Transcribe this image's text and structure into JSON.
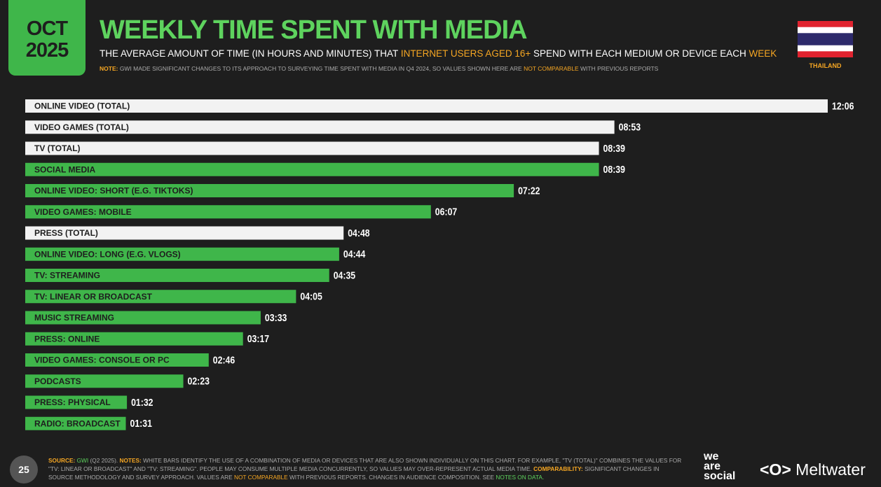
{
  "header": {
    "month": "OCT",
    "year": "2025",
    "country": "THAILAND",
    "page_number": "25",
    "subtitle_parts": [
      {
        "text": "THE AVERAGE AMOUNT OF TIME (IN HOURS AND MINUTES) THAT ",
        "color": "#ffffff"
      },
      {
        "text": "INTERNET USERS AGED 16+",
        "color": "#f5a623"
      },
      {
        "text": " SPEND WITH EACH MEDIUM OR DEVICE EACH ",
        "color": "#ffffff"
      },
      {
        "text": "WEEK",
        "color": "#f5a623"
      }
    ],
    "note_parts": [
      {
        "text": "NOTE:",
        "color": "#f5a623"
      },
      {
        "text": " GWI MADE SIGNIFICANT CHANGES TO ITS APPROACH TO SURVEYING TIME SPENT WITH MEDIA IN Q4 2024, SO VALUES SHOWN HERE ARE ",
        "color": "#aaaaaa"
      },
      {
        "text": "NOT COMPARABLE",
        "color": "#f5a623"
      },
      {
        "text": " WITH PREVIOUS REPORTS",
        "color": "#aaaaaa"
      }
    ]
  },
  "footer": {
    "parts": [
      {
        "text": "SOURCE:",
        "color": "#f5a623"
      },
      {
        "text": " GWI",
        "color": "#5ed35e"
      },
      {
        "text": " (Q2 2025). ",
        "color": "#aaaaaa"
      },
      {
        "text": "NOTES:",
        "color": "#f5a623"
      },
      {
        "text": " WHITE BARS IDENTIFY THE USE OF A COMBINATION OF MEDIA OR DEVICES THAT ARE ALSO SHOWN INDIVIDUALLY ON THIS CHART. FOR EXAMPLE, \"TV (TOTAL)\" COMBINES THE VALUES FOR \"TV: LINEAR OR BROADCAST\" AND \"TV: STREAMING\". PEOPLE MAY CONSUME MULTIPLE MEDIA CONCURRENTLY, SO VALUES MAY OVER-REPRESENT ACTUAL MEDIA TIME. ",
        "color": "#aaaaaa"
      },
      {
        "text": "COMPARABILITY:",
        "color": "#f5a623"
      },
      {
        "text": " SIGNIFICANT CHANGES IN SOURCE METHODOLOGY AND SURVEY APPROACH. VALUES ARE ",
        "color": "#aaaaaa"
      },
      {
        "text": "NOT COMPARABLE",
        "color": "#f5a623"
      },
      {
        "text": " WITH PREVIOUS REPORTS. CHANGES IN AUDIENCE COMPOSITION. SEE ",
        "color": "#aaaaaa"
      },
      {
        "text": "NOTES ON DATA.",
        "color": "#5ed35e"
      }
    ],
    "logo_1": [
      "we",
      "are",
      "social"
    ],
    "logo_2": "Meltwater"
  },
  "chart_data": {
    "type": "bar",
    "orientation": "horizontal",
    "title": "WEEKLY TIME SPENT WITH MEDIA",
    "categories": [
      "ONLINE VIDEO (TOTAL)",
      "VIDEO GAMES (TOTAL)",
      "TV (TOTAL)",
      "SOCIAL MEDIA",
      "ONLINE VIDEO: SHORT (E.G. TIKTOKS)",
      "VIDEO GAMES: MOBILE",
      "PRESS (TOTAL)",
      "ONLINE VIDEO: LONG (E.G. VLOGS)",
      "TV: STREAMING",
      "TV: LINEAR OR BROADCAST",
      "MUSIC STREAMING",
      "PRESS: ONLINE",
      "VIDEO GAMES: CONSOLE OR PC",
      "PODCASTS",
      "PRESS: PHYSICAL",
      "RADIO: BROADCAST"
    ],
    "values": [
      726,
      533,
      519,
      519,
      442,
      367,
      288,
      284,
      275,
      245,
      213,
      197,
      166,
      143,
      92,
      91
    ],
    "value_labels": [
      "12:06",
      "08:53",
      "08:39",
      "08:39",
      "07:22",
      "06:07",
      "04:48",
      "04:44",
      "04:35",
      "04:05",
      "03:33",
      "03:17",
      "02:46",
      "02:23",
      "01:32",
      "01:31"
    ],
    "colors": [
      "#f2f2f2",
      "#f2f2f2",
      "#f2f2f2",
      "#3fb64a",
      "#3fb64a",
      "#3fb64a",
      "#f2f2f2",
      "#3fb64a",
      "#3fb64a",
      "#3fb64a",
      "#3fb64a",
      "#3fb64a",
      "#3fb64a",
      "#3fb64a",
      "#3fb64a",
      "#3fb64a"
    ]
  }
}
